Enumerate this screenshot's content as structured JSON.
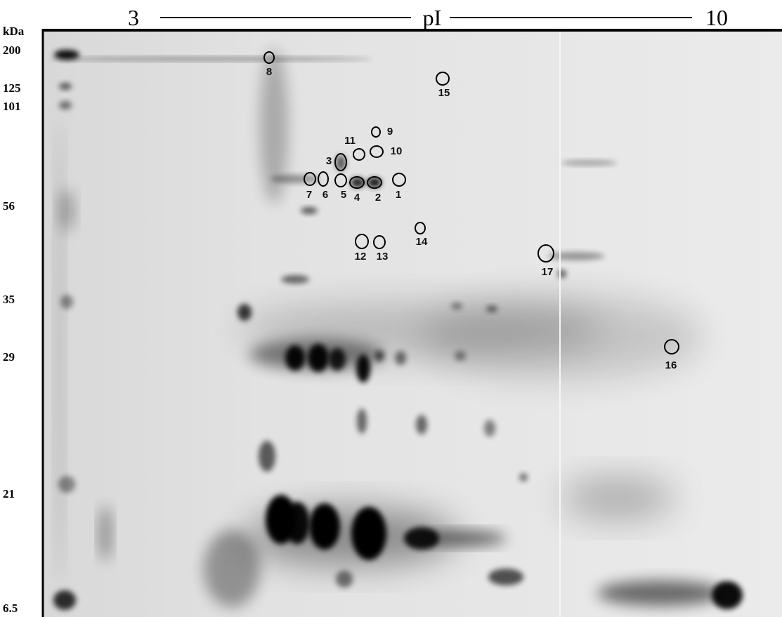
{
  "header": {
    "pi_start": "3",
    "pi_label": "pI",
    "pi_end": "10"
  },
  "mw_axis": {
    "unit": "kDa",
    "labels": [
      "200",
      "125",
      "101",
      "56",
      "35",
      "29",
      "21",
      "6.5"
    ]
  },
  "spots": [
    "1",
    "2",
    "3",
    "4",
    "5",
    "6",
    "7",
    "8",
    "9",
    "10",
    "11",
    "12",
    "13",
    "14",
    "15",
    "16",
    "17"
  ]
}
